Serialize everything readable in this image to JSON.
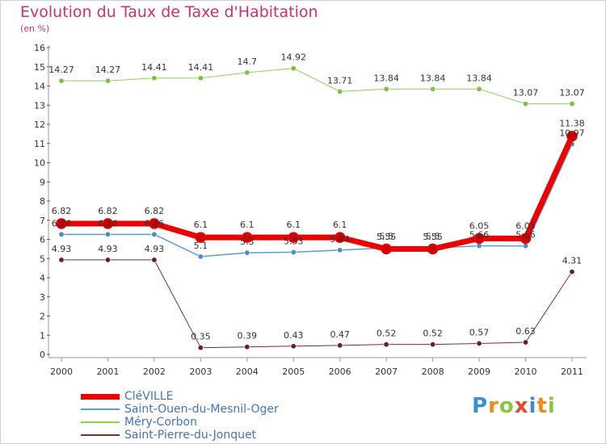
{
  "title": "Evolution du Taux de Taxe d'Habitation",
  "unit": "(en %)",
  "logo": {
    "text": "Proxiti",
    "letters": [
      {
        "ch": "P",
        "color": "#3b8fd1"
      },
      {
        "ch": "r",
        "color": "#f08a1c"
      },
      {
        "ch": "o",
        "color": "#8cc63f"
      },
      {
        "ch": "x",
        "color": "#e8462b"
      },
      {
        "ch": "i",
        "color": "#3b8fd1"
      },
      {
        "ch": "t",
        "color": "#f08a1c"
      },
      {
        "ch": "i",
        "color": "#8cc63f"
      }
    ]
  },
  "chart_data": {
    "type": "line",
    "title": "Evolution du Taux de Taxe d'Habitation",
    "ylabel": "(en %)",
    "xlabel": "",
    "x": [
      "2000",
      "2001",
      "2002",
      "2003",
      "2004",
      "2005",
      "2006",
      "2007",
      "2008",
      "2009",
      "2010",
      "2011"
    ],
    "ylim": [
      0,
      16
    ],
    "yticks": [
      0,
      1,
      2,
      3,
      4,
      5,
      6,
      7,
      8,
      9,
      10,
      11,
      12,
      13,
      14,
      15,
      16
    ],
    "grid": false,
    "legend_position": "bottom-left",
    "series": [
      {
        "name": "Méry-Corbon",
        "color": "#8fd14f",
        "marker": "#7cc23f",
        "width": 1,
        "values": [
          14.27,
          14.27,
          14.41,
          14.41,
          14.7,
          14.92,
          13.71,
          13.84,
          13.84,
          13.84,
          13.07,
          13.07
        ],
        "labels": [
          "14.27",
          "14.27",
          "14.41",
          "14.41",
          "14.7",
          "14.92",
          "13.71",
          "13.84",
          "13.84",
          "13.84",
          "13.07",
          "13.07"
        ]
      },
      {
        "name": "Saint-Pierre-du-Jonquet",
        "color": "#7a2e2e",
        "marker": "#6b1f1f",
        "width": 1,
        "values": [
          4.93,
          4.93,
          4.93,
          0.35,
          0.39,
          0.43,
          0.47,
          0.52,
          0.52,
          0.57,
          0.63,
          4.31
        ],
        "labels": [
          "4.93",
          "4.93",
          "4.93",
          "0.35",
          "0.39",
          "0.43",
          "0.47",
          "0.52",
          "0.52",
          "0.57",
          "0.63",
          "4.31"
        ]
      },
      {
        "name": "Saint-Ouen-du-Mesnil-Oger",
        "color": "#5b9bd5",
        "marker": "#4a8bc8",
        "width": 1.5,
        "values": [
          6.26,
          6.26,
          6.26,
          5.1,
          5.3,
          5.33,
          5.44,
          5.55,
          5.55,
          5.66,
          5.66,
          10.97
        ],
        "labels": [
          "6.26",
          "6.26",
          "6.26",
          "5.1",
          "5.3",
          "5.33",
          "5.44",
          "5.55",
          "5.55",
          "5.66",
          "5.66",
          "10.97"
        ]
      },
      {
        "name": "CléVILLE",
        "color": "#ee0000",
        "marker": "#cc0000",
        "width": 7,
        "values": [
          6.82,
          6.82,
          6.82,
          6.1,
          6.1,
          6.1,
          6.1,
          5.5,
          5.5,
          6.05,
          6.05,
          11.38
        ],
        "labels": [
          "6.82",
          "6.82",
          "6.82",
          "6.1",
          "6.1",
          "6.1",
          "6.1",
          "5.5",
          "5.5",
          "6.05",
          "6.05",
          "11.38"
        ]
      }
    ],
    "legend_order": [
      "CléVILLE",
      "Saint-Ouen-du-Mesnil-Oger",
      "Méry-Corbon",
      "Saint-Pierre-du-Jonquet"
    ]
  }
}
